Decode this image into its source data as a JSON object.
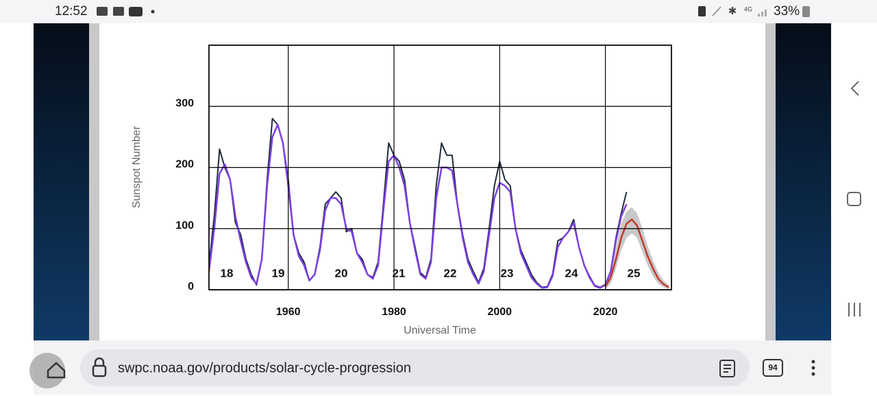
{
  "status_bar": {
    "time": "12:52",
    "network": "4G",
    "battery": "33%"
  },
  "browser": {
    "url": "swpc.noaa.gov/products/solar-cycle-progression",
    "tab_count": "94"
  },
  "chart_data": {
    "type": "line",
    "y_label": "Sunspot Number",
    "x_label": "Universal Time",
    "xlim": [
      1945,
      2032.5
    ],
    "ylim": [
      0,
      400
    ],
    "xticks": [
      1960,
      1980,
      2000,
      2020
    ],
    "yticks": [
      0,
      100,
      200,
      300
    ],
    "grid": true,
    "annotations": [
      "18",
      "19",
      "20",
      "21",
      "22",
      "23",
      "24",
      "25"
    ],
    "x": [
      1945,
      1946,
      1947,
      1948,
      1949,
      1950,
      1951,
      1952,
      1953,
      1954,
      1955,
      1956,
      1957,
      1958,
      1959,
      1960,
      1961,
      1962,
      1963,
      1964,
      1965,
      1966,
      1967,
      1968,
      1969,
      1970,
      1971,
      1972,
      1973,
      1974,
      1975,
      1976,
      1977,
      1978,
      1979,
      1980,
      1981,
      1982,
      1983,
      1984,
      1985,
      1986,
      1987,
      1988,
      1989,
      1990,
      1991,
      1992,
      1993,
      1994,
      1995,
      1996,
      1997,
      1998,
      1999,
      2000,
      2001,
      2002,
      2003,
      2004,
      2005,
      2006,
      2007,
      2008,
      2009,
      2010,
      2011,
      2012,
      2013,
      2014,
      2015,
      2016,
      2017,
      2018,
      2019,
      2020,
      2021,
      2022,
      2023,
      2024,
      2025,
      2026,
      2027,
      2028,
      2029,
      2030,
      2031,
      2032
    ],
    "series": [
      {
        "color": "#1f2a3a",
        "values": [
          40,
          120,
          230,
          200,
          180,
          110,
          90,
          50,
          25,
          8,
          50,
          180,
          280,
          270,
          240,
          180,
          90,
          60,
          45,
          15,
          25,
          70,
          140,
          150,
          160,
          150,
          95,
          100,
          60,
          50,
          25,
          20,
          45,
          140,
          240,
          220,
          210,
          180,
          110,
          70,
          28,
          20,
          50,
          170,
          240,
          220,
          220,
          140,
          90,
          50,
          30,
          12,
          35,
          100,
          170,
          210,
          180,
          170,
          100,
          65,
          45,
          25,
          12,
          4,
          5,
          25,
          80,
          85,
          95,
          115,
          70,
          40,
          22,
          7,
          4,
          9,
          30,
          85,
          125,
          160,
          null,
          null,
          null,
          null,
          null,
          null,
          null,
          null
        ]
      },
      {
        "color": "#7b3fe4",
        "values": [
          30,
          100,
          190,
          205,
          180,
          120,
          80,
          45,
          20,
          10,
          50,
          170,
          250,
          270,
          240,
          170,
          90,
          55,
          40,
          15,
          25,
          65,
          130,
          150,
          150,
          140,
          100,
          95,
          60,
          45,
          25,
          18,
          40,
          130,
          210,
          220,
          200,
          170,
          110,
          65,
          25,
          18,
          45,
          150,
          200,
          200,
          195,
          140,
          85,
          45,
          25,
          10,
          30,
          90,
          150,
          175,
          170,
          160,
          100,
          60,
          40,
          20,
          10,
          3,
          4,
          22,
          70,
          85,
          95,
          110,
          70,
          40,
          20,
          6,
          3,
          8,
          30,
          80,
          120,
          140,
          null,
          null,
          null,
          null,
          null,
          null,
          null,
          null
        ]
      },
      {
        "color": "#c0392b",
        "values": [
          null,
          null,
          null,
          null,
          null,
          null,
          null,
          null,
          null,
          null,
          null,
          null,
          null,
          null,
          null,
          null,
          null,
          null,
          null,
          null,
          null,
          null,
          null,
          null,
          null,
          null,
          null,
          null,
          null,
          null,
          null,
          null,
          null,
          null,
          null,
          null,
          null,
          null,
          null,
          null,
          null,
          null,
          null,
          null,
          null,
          null,
          null,
          null,
          null,
          null,
          null,
          null,
          null,
          null,
          null,
          null,
          null,
          null,
          null,
          null,
          null,
          null,
          null,
          null,
          null,
          null,
          null,
          null,
          null,
          null,
          null,
          null,
          null,
          null,
          null,
          5,
          20,
          50,
          85,
          108,
          115,
          105,
          80,
          55,
          35,
          18,
          9,
          4
        ]
      }
    ],
    "band": {
      "color": "#c8c8c8",
      "lower": [
        null,
        null,
        null,
        null,
        null,
        null,
        null,
        null,
        null,
        null,
        null,
        null,
        null,
        null,
        null,
        null,
        null,
        null,
        null,
        null,
        null,
        null,
        null,
        null,
        null,
        null,
        null,
        null,
        null,
        null,
        null,
        null,
        null,
        null,
        null,
        null,
        null,
        null,
        null,
        null,
        null,
        null,
        null,
        null,
        null,
        null,
        null,
        null,
        null,
        null,
        null,
        null,
        null,
        null,
        null,
        null,
        null,
        null,
        null,
        null,
        null,
        null,
        null,
        null,
        null,
        null,
        null,
        null,
        null,
        null,
        null,
        null,
        null,
        null,
        null,
        0,
        10,
        35,
        65,
        85,
        92,
        85,
        62,
        40,
        22,
        10,
        4,
        1
      ],
      "upper": [
        null,
        null,
        null,
        null,
        null,
        null,
        null,
        null,
        null,
        null,
        null,
        null,
        null,
        null,
        null,
        null,
        null,
        null,
        null,
        null,
        null,
        null,
        null,
        null,
        null,
        null,
        null,
        null,
        null,
        null,
        null,
        null,
        null,
        null,
        null,
        null,
        null,
        null,
        null,
        null,
        null,
        null,
        null,
        null,
        null,
        null,
        null,
        null,
        null,
        null,
        null,
        null,
        null,
        null,
        null,
        null,
        null,
        null,
        null,
        null,
        null,
        null,
        null,
        null,
        null,
        null,
        null,
        null,
        null,
        null,
        null,
        null,
        null,
        null,
        null,
        10,
        32,
        68,
        108,
        128,
        135,
        125,
        100,
        72,
        48,
        28,
        15,
        8
      ]
    }
  }
}
